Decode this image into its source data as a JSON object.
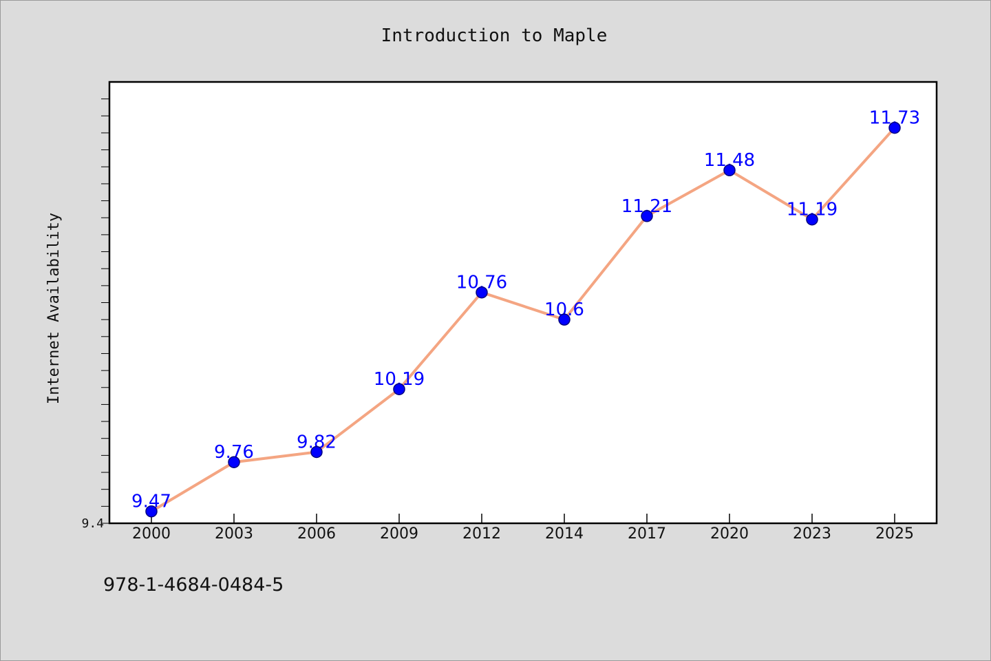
{
  "chart_data": {
    "type": "line",
    "title": "Introduction to Maple",
    "xlabel": "",
    "ylabel": "Internet Availability",
    "categories": [
      "2000",
      "2003",
      "2006",
      "2009",
      "2012",
      "2014",
      "2017",
      "2020",
      "2023",
      "2025"
    ],
    "series": [
      {
        "values": [
          9.47,
          9.76,
          9.82,
          10.19,
          10.76,
          10.6,
          11.21,
          11.48,
          11.19,
          11.73
        ]
      }
    ],
    "data_labels": [
      "9.47",
      "9.76",
      "9.82",
      "10.19",
      "10.76",
      "10.6",
      "11.21",
      "11.48",
      "11.19",
      "11.73"
    ],
    "ytick_labels": [
      "9.4"
    ],
    "ylim": [
      9.4,
      12.0
    ],
    "grid": false,
    "legend": "none",
    "colors": {
      "line": "#f4a582",
      "marker": "#0000ff",
      "marker_edge": "#000080",
      "data_label": "#0000ff"
    }
  },
  "footer": {
    "isbn": "978-1-4684-0484-5"
  }
}
